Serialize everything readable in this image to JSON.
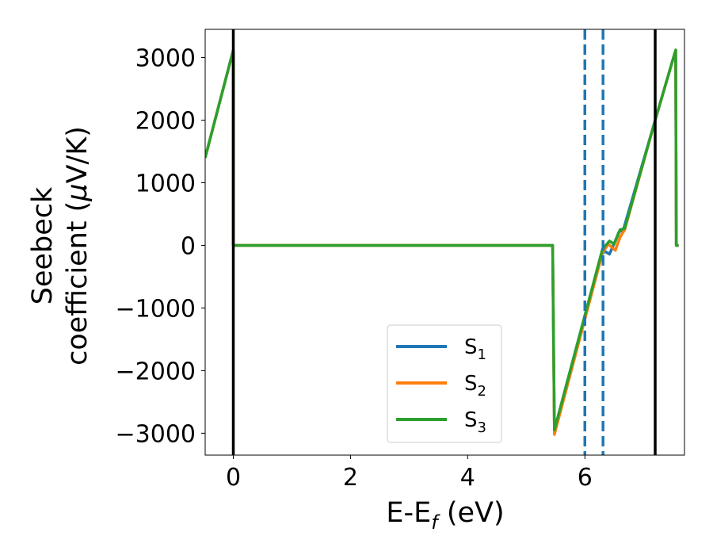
{
  "chart_data": {
    "type": "line",
    "xlabel": {
      "main": "E-E",
      "sub": "f",
      "tail": " (eV)"
    },
    "ylabel_line1": "Seebeck",
    "ylabel_line2": {
      "pre": "coefficient  (",
      "greek": "μ",
      "post": "V/K)"
    },
    "xlim": [
      -0.48,
      7.7
    ],
    "ylim": [
      -3350,
      3450
    ],
    "xticks": [
      0,
      2,
      4,
      6
    ],
    "xtick_labels": [
      "0",
      "2",
      "4",
      "6"
    ],
    "yticks": [
      -3000,
      -2000,
      -1000,
      0,
      1000,
      2000,
      3000
    ],
    "ytick_labels": [
      "−3000",
      "−2000",
      "−1000",
      "0",
      "1000",
      "2000",
      "3000"
    ],
    "grid": false,
    "legend_position": "lower center",
    "series": [
      {
        "name": "S",
        "sub": "1",
        "color": "#1f77b4",
        "x": [
          -0.48,
          0.0,
          0.0,
          5.45,
          5.45,
          5.48,
          6.0,
          6.3,
          6.35,
          6.42,
          6.5,
          6.58,
          6.66,
          7.2,
          7.55,
          7.56,
          7.6
        ],
        "y": [
          1400,
          3120,
          0,
          0,
          0,
          -2950,
          -1120,
          -120,
          -100,
          -140,
          30,
          210,
          260,
          2000,
          3120,
          0,
          0
        ]
      },
      {
        "name": "S",
        "sub": "2",
        "color": "#ff7f0e",
        "x": [
          -0.48,
          0.0,
          0.0,
          5.45,
          5.45,
          5.48,
          6.0,
          6.3,
          6.4,
          6.52,
          6.6,
          6.68,
          7.2,
          7.55,
          7.56,
          7.6
        ],
        "y": [
          1400,
          3120,
          0,
          0,
          0,
          -3020,
          -1180,
          -120,
          20,
          -80,
          130,
          250,
          2000,
          3120,
          0,
          0
        ]
      },
      {
        "name": "S",
        "sub": "3",
        "color": "#2ca02c",
        "x": [
          -0.48,
          0.0,
          0.0,
          5.45,
          5.45,
          5.48,
          6.0,
          6.3,
          6.42,
          6.5,
          6.6,
          6.68,
          7.2,
          7.55,
          7.56,
          7.6
        ],
        "y": [
          1400,
          3120,
          0,
          0,
          0,
          -2950,
          -1120,
          -60,
          70,
          20,
          250,
          270,
          2000,
          3120,
          0,
          0
        ]
      }
    ],
    "vlines_solid": [
      0.0,
      7.2
    ],
    "vlines_dashed": [
      6.0,
      6.31
    ],
    "vline_solid_color": "#000000",
    "vline_dashed_color": "#1f77b4"
  }
}
